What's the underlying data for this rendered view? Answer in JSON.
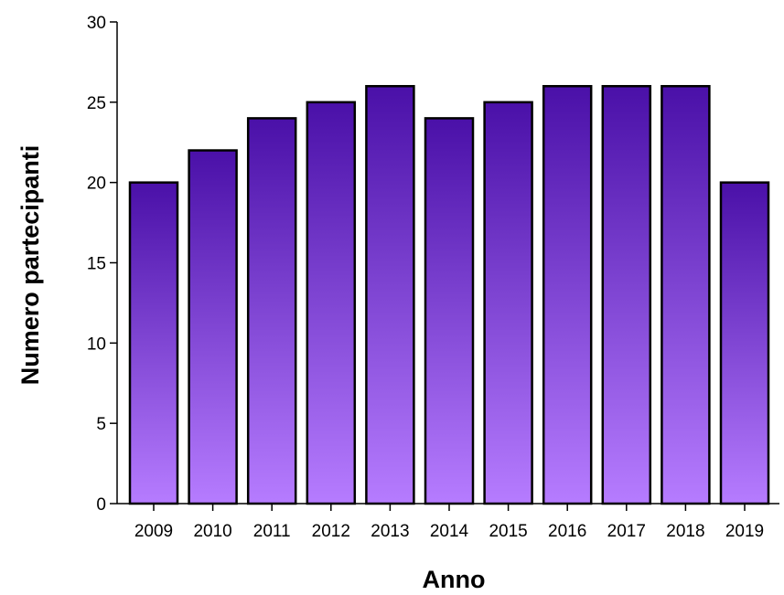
{
  "chart_data": {
    "type": "bar",
    "title": "",
    "xlabel": "Anno",
    "ylabel": "Numero partecipanti",
    "categories": [
      "2009",
      "2010",
      "2011",
      "2012",
      "2013",
      "2014",
      "2015",
      "2016",
      "2017",
      "2018",
      "2019"
    ],
    "values": [
      20,
      22,
      24,
      25,
      26,
      24,
      25,
      26,
      26,
      26,
      20
    ],
    "ylim": [
      0,
      30
    ],
    "yticks": [
      "0",
      "5",
      "10",
      "15",
      "20",
      "25",
      "30"
    ],
    "grid": false,
    "legend": "none",
    "colors": {
      "bar_top": "#4a10a8",
      "bar_bottom": "#b67cff",
      "outline": "#000000"
    }
  }
}
